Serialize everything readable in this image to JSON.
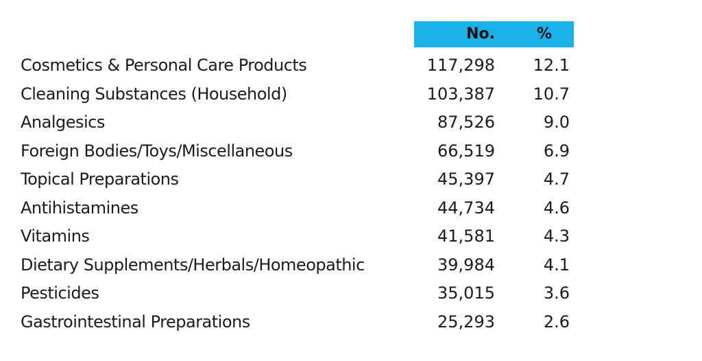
{
  "table": {
    "headers": {
      "no": "No.",
      "pct": "%"
    },
    "header_color": "#1ab2e8",
    "rows": [
      {
        "category": "Cosmetics & Personal Care Products",
        "no": "117,298",
        "pct": "12.1"
      },
      {
        "category": "Cleaning Substances (Household)",
        "no": "103,387",
        "pct": "10.7"
      },
      {
        "category": "Analgesics",
        "no": "87,526",
        "pct": "9.0"
      },
      {
        "category": "Foreign Bodies/Toys/Miscellaneous",
        "no": "66,519",
        "pct": "6.9"
      },
      {
        "category": "Topical Preparations",
        "no": "45,397",
        "pct": "4.7"
      },
      {
        "category": "Antihistamines",
        "no": "44,734",
        "pct": "4.6"
      },
      {
        "category": "Vitamins",
        "no": "41,581",
        "pct": "4.3"
      },
      {
        "category": "Dietary Supplements/Herbals/Homeopathic",
        "no": "39,984",
        "pct": "4.1"
      },
      {
        "category": "Pesticides",
        "no": "35,015",
        "pct": "3.6"
      },
      {
        "category": "Gastrointestinal Preparations",
        "no": "25,293",
        "pct": "2.6"
      }
    ]
  }
}
